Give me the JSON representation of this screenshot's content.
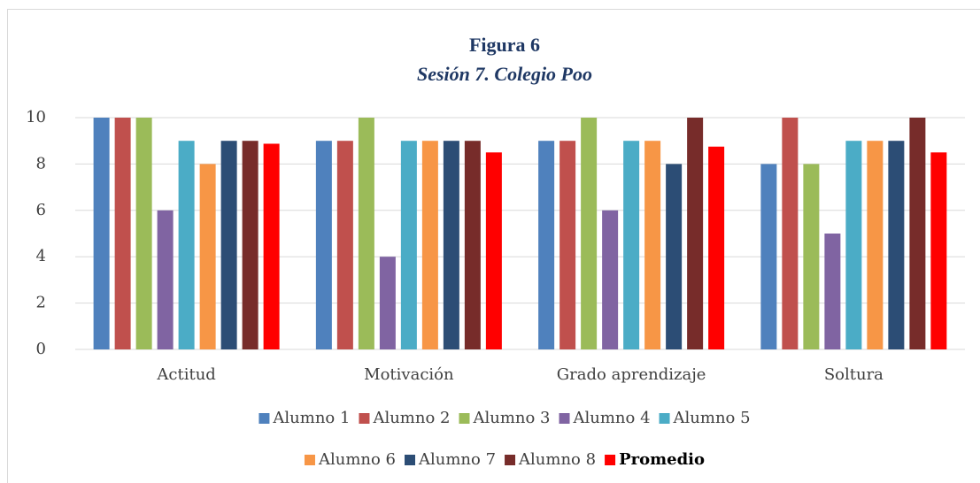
{
  "chart_data": {
    "type": "bar",
    "title": "Figura 6",
    "subtitle": "Sesión 7. Colegio Poo",
    "categories": [
      "Actitud",
      "Motivación",
      "Grado aprendizaje",
      "Soltura"
    ],
    "series": [
      {
        "name": "Alumno 1",
        "color": "#4f81bd",
        "values": [
          10,
          9,
          9,
          8
        ]
      },
      {
        "name": "Alumno 2",
        "color": "#c0504d",
        "values": [
          10,
          9,
          9,
          10
        ]
      },
      {
        "name": "Alumno 3",
        "color": "#9bbb59",
        "values": [
          10,
          10,
          10,
          8
        ]
      },
      {
        "name": "Alumno 4",
        "color": "#8064a2",
        "values": [
          6,
          4,
          6,
          5
        ]
      },
      {
        "name": "Alumno 5",
        "color": "#4bacc6",
        "values": [
          9,
          9,
          9,
          9
        ]
      },
      {
        "name": "Alumno 6",
        "color": "#f79646",
        "values": [
          8,
          9,
          9,
          9
        ]
      },
      {
        "name": "Alumno 7",
        "color": "#2c4d75",
        "values": [
          9,
          9,
          8,
          9
        ]
      },
      {
        "name": "Alumno 8",
        "color": "#772c2a",
        "values": [
          9,
          9,
          10,
          10
        ]
      },
      {
        "name": "Promedio",
        "color": "#ff0000",
        "values": [
          8.875,
          8.5,
          8.75,
          8.5
        ],
        "bold": true
      }
    ],
    "ylim": [
      0,
      10
    ],
    "yticks": [
      0,
      2,
      4,
      6,
      8,
      10
    ],
    "grid": true,
    "legend": "bottom"
  }
}
